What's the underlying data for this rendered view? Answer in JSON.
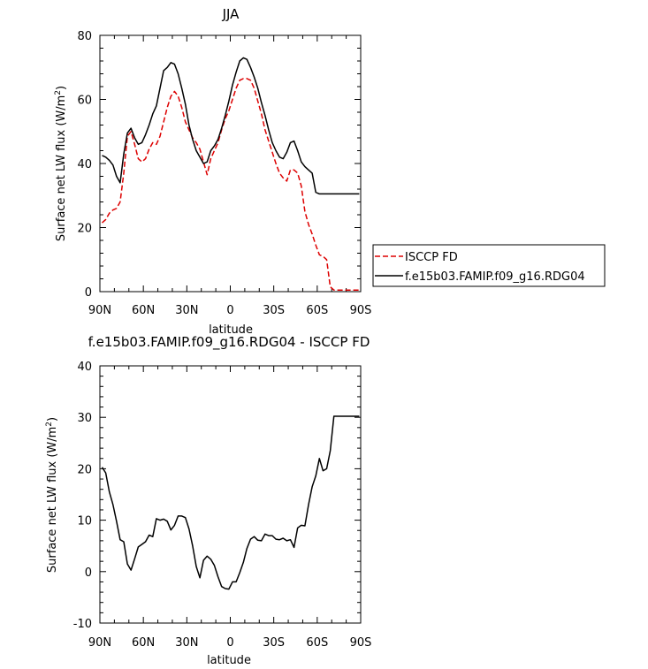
{
  "chart_data": [
    {
      "type": "line",
      "title": "JJA",
      "xlabel": "latitude",
      "ylabel_main": "Surface net LW flux (W/m",
      "ylabel_sup": "2",
      "ylabel_end": ")",
      "xlim": [
        90,
        -90
      ],
      "ylim": [
        0,
        80
      ],
      "x_ticks": [
        90,
        60,
        30,
        0,
        -30,
        -60,
        -90
      ],
      "x_tick_labels": [
        "90N",
        "60N",
        "30N",
        "0",
        "30S",
        "60S",
        "90S"
      ],
      "y_ticks": [
        0,
        20,
        40,
        60,
        80
      ],
      "y_tick_labels": [
        "0",
        "20",
        "40",
        "60",
        "80"
      ],
      "legend_position": "right",
      "series": [
        {
          "name": "ISCCP FD",
          "color": "#dd0000",
          "dash": "dashed",
          "x": [
            88.5,
            86,
            83.5,
            81,
            78.5,
            76,
            73.5,
            71,
            68.5,
            66,
            63.5,
            61,
            58.5,
            56,
            53.5,
            51,
            48.5,
            46,
            43.5,
            41,
            38.5,
            36,
            33.5,
            31,
            28.5,
            26,
            23.5,
            21,
            18.5,
            16,
            13.5,
            11,
            8.5,
            6,
            3.5,
            1,
            -1.5,
            -4,
            -6.5,
            -9,
            -11.5,
            -14,
            -16.5,
            -19,
            -21.5,
            -24,
            -26.5,
            -29,
            -31.5,
            -34,
            -36.5,
            -39,
            -41.5,
            -44,
            -46.5,
            -49,
            -51.5,
            -54,
            -56.5,
            -59,
            -61.5,
            -64,
            -66.5,
            -69,
            -71.5,
            -74,
            -76.5,
            -79,
            -81.5,
            -84,
            -86.5,
            -89
          ],
          "y": [
            21.5,
            22.5,
            24.5,
            25.5,
            26,
            28,
            37,
            48.5,
            50,
            46,
            41.5,
            40.5,
            41.5,
            44.5,
            46.5,
            46,
            48.5,
            53,
            57.5,
            61,
            62.5,
            61,
            57.5,
            53,
            50.5,
            48,
            46.5,
            44.5,
            40.5,
            36.5,
            41.5,
            44,
            46.5,
            50.5,
            54,
            56.5,
            60,
            63.5,
            66,
            66.5,
            66.5,
            66,
            63.5,
            59.5,
            55.5,
            50.5,
            47,
            43.5,
            40,
            37,
            35.5,
            34.5,
            38,
            38,
            37,
            33,
            25,
            21,
            18,
            14.5,
            11.5,
            11,
            10,
            1.5,
            0.5,
            0.5,
            0.5,
            0.5,
            0.5,
            0.5,
            0.5,
            0.5
          ]
        },
        {
          "name": "f.e15b03.FAMIP.f09_g16.RDG04",
          "color": "#000000",
          "dash": "solid",
          "x": [
            88.5,
            86,
            83.5,
            81,
            78.5,
            76,
            73.5,
            71,
            68.5,
            66,
            63.5,
            61,
            58.5,
            56,
            53.5,
            51,
            48.5,
            46,
            43.5,
            41,
            38.5,
            36,
            33.5,
            31,
            28.5,
            26,
            23.5,
            21,
            18.5,
            16,
            13.5,
            11,
            8.5,
            6,
            3.5,
            1,
            -1.5,
            -4,
            -6.5,
            -9,
            -11.5,
            -14,
            -16.5,
            -19,
            -21.5,
            -24,
            -26.5,
            -29,
            -31.5,
            -34,
            -36.5,
            -39,
            -41.5,
            -44,
            -46.5,
            -49,
            -51.5,
            -54,
            -56.5,
            -59,
            -61.5,
            -64,
            -66.5,
            -69,
            -71.5,
            -74,
            -76.5,
            -79,
            -81.5,
            -84,
            -86.5,
            -89
          ],
          "y": [
            42.5,
            42,
            41,
            39.5,
            36,
            34,
            43,
            49.5,
            51,
            48,
            46,
            46.5,
            49,
            52,
            55.5,
            58,
            63.5,
            69,
            70,
            71.5,
            71,
            68,
            63.5,
            58.5,
            52,
            47.5,
            44,
            42,
            40,
            40.5,
            44,
            45.5,
            47.5,
            51,
            55,
            59.5,
            64.5,
            68.5,
            72,
            73,
            72.5,
            70,
            67,
            63.5,
            59,
            55,
            50.5,
            46.5,
            44,
            42,
            41.5,
            43.5,
            46.5,
            47,
            44,
            40.5,
            39,
            38,
            37,
            31,
            30.5,
            30.5,
            30.5,
            30.5,
            30.5,
            30.5,
            30.5,
            30.5,
            30.5,
            30.5,
            30.5,
            30.5
          ]
        }
      ]
    },
    {
      "type": "line",
      "title": "f.e15b03.FAMIP.f09_g16.RDG04 - ISCCP FD",
      "xlabel": "latitude",
      "ylabel_main": "Surface net LW flux (W/m",
      "ylabel_sup": "2",
      "ylabel_end": ")",
      "xlim": [
        90,
        -90
      ],
      "ylim": [
        -10,
        40
      ],
      "x_ticks": [
        90,
        60,
        30,
        0,
        -30,
        -60,
        -90
      ],
      "x_tick_labels": [
        "90N",
        "60N",
        "30N",
        "0",
        "30S",
        "60S",
        "90S"
      ],
      "y_ticks": [
        -10,
        0,
        10,
        20,
        30,
        40
      ],
      "y_tick_labels": [
        "-10",
        "0",
        "10",
        "20",
        "30",
        "40"
      ],
      "series": [
        {
          "name": "",
          "color": "#000000",
          "dash": "solid",
          "x": [
            88.5,
            86,
            83.5,
            81,
            78.5,
            76,
            73.5,
            71,
            68.5,
            66,
            63.5,
            61,
            58.5,
            56,
            53.5,
            51,
            48.5,
            46,
            43.5,
            41,
            38.5,
            36,
            33.5,
            31,
            28.5,
            26,
            23.5,
            21,
            18.5,
            16,
            13.5,
            11,
            8.5,
            6,
            3.5,
            1,
            -1.5,
            -4,
            -6.5,
            -9,
            -11.5,
            -14,
            -16.5,
            -19,
            -21.5,
            -24,
            -26.5,
            -29,
            -31.5,
            -34,
            -36.5,
            -39,
            -41.5,
            -44,
            -46.5,
            -49,
            -51.5,
            -54,
            -56.5,
            -59,
            -61.5,
            -64,
            -66.5,
            -69,
            -71.5,
            -74,
            -76.5,
            -79,
            -81.5,
            -84,
            -86.5,
            -89
          ],
          "y": [
            20.3,
            19.2,
            15.5,
            13,
            9.8,
            6.2,
            5.8,
            1.5,
            0.3,
            2.5,
            4.8,
            5.3,
            5.8,
            7.1,
            6.8,
            10.3,
            10,
            10.2,
            9.8,
            8.1,
            9,
            10.8,
            10.8,
            10.5,
            8.3,
            5,
            1,
            -1.2,
            2.2,
            3,
            2.4,
            1.2,
            -1,
            -2.9,
            -3.3,
            -3.4,
            -2,
            -2,
            -0.2,
            1.8,
            4.5,
            6.3,
            6.8,
            6.1,
            6,
            7.3,
            7,
            7,
            6.3,
            6.2,
            6.5,
            6,
            6.2,
            4.7,
            8.5,
            9,
            8.9,
            13,
            16.5,
            18.6,
            22,
            19.6,
            20,
            23.5,
            30.2,
            30.2,
            30.2,
            30.2,
            30.2,
            30.2,
            30.2,
            30.2
          ]
        }
      ]
    }
  ]
}
